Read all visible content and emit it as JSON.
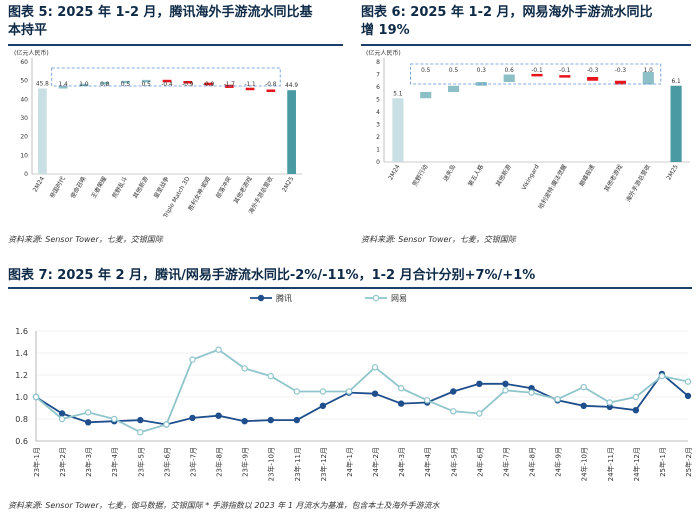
{
  "charts": {
    "fig5": {
      "title_line1": "图表 5: 2025 年 1-2 月，腾讯海外手游流水同比基",
      "title_line2": "本持平",
      "source": "资料来源: Sensor Tower，七麦，交银国际"
    },
    "fig6": {
      "title_line1": "图表 6: 2025 年 1-2 月，网易海外手游流水同比",
      "title_line2": "增 19%",
      "source": "资料来源: Sensor Tower，七麦，交银国际"
    },
    "fig7": {
      "title": "图表 7: 2025 年 2 月，腾讯/网易手游流水同比-2%/-11%，1-2 月合计分别+7%/+1%",
      "source": "资料来源: Sensor Tower，七麦，伽马数据，交银国际   * 手游指数以 2023 年 1 月流水为基准，包含本土及海外手游流水"
    }
  },
  "colors": {
    "baseline_bar": "#c9dfe3",
    "final_bar": "#4a9aa3",
    "up_bar": "#8cbfc6",
    "down_bar": "#e8141b",
    "tencent_line": "#1f4e8c",
    "netease_line": "#8fc5cb",
    "dashed_box": "#5b8fd6"
  },
  "chart_data": [
    {
      "id": "fig5",
      "type": "bar",
      "subtype": "waterfall",
      "unit_label": "(亿元人民币)",
      "ylim": [
        0,
        60
      ],
      "yticks": [
        0,
        10,
        20,
        30,
        40,
        50,
        60
      ],
      "categories": [
        "2M24",
        "帝国时代",
        "使命召唤",
        "王者荣耀",
        "荒野乱斗",
        "其他新游",
        "皇室战争",
        "Triple Match 3D",
        "胜利女神:妮姬",
        "部落冲突",
        "其他老游戏",
        "海外手游总营收",
        "2M25"
      ],
      "values": [
        45.8,
        1.4,
        1.0,
        0.8,
        0.5,
        0.5,
        -0.4,
        -0.9,
        -0.9,
        -1.7,
        -1.1,
        -0.8,
        44.9
      ],
      "labels": [
        "45.8",
        "1.4",
        "1.0",
        "0.8",
        "0.5",
        "0.5",
        "-0.4",
        "-0.9",
        "-0.9",
        "-1.7",
        "-1.1",
        "-0.8",
        "44.9"
      ]
    },
    {
      "id": "fig6",
      "type": "bar",
      "subtype": "waterfall",
      "unit_label": "(亿元人民币)",
      "ylim": [
        0,
        8
      ],
      "yticks": [
        0,
        1,
        2,
        3,
        4,
        5,
        6,
        7,
        8
      ],
      "categories": [
        "2M24",
        "荒野行动",
        "迷失岛",
        "第五人格",
        "其他新游",
        "Vikingard",
        "哈利波特:魔法觉醒",
        "巅峰极速",
        "其他老游戏",
        "海外手游总营收",
        "2M25"
      ],
      "values": [
        5.1,
        0.5,
        0.5,
        0.3,
        0.6,
        -0.1,
        -0.1,
        -0.3,
        -0.3,
        1.0,
        6.1
      ],
      "labels": [
        "5.1",
        "0.5",
        "0.5",
        "0.3",
        "0.6",
        "-0.1",
        "-0.1",
        "-0.3",
        "-0.3",
        "1.0",
        "6.1"
      ]
    },
    {
      "id": "fig7",
      "type": "line",
      "ylim": [
        0.6,
        1.6
      ],
      "yticks": [
        "0.6",
        "0.8",
        "1.0",
        "1.2",
        "1.4",
        "1.6"
      ],
      "x": [
        "23年-1月",
        "23年-2月",
        "23年-3月",
        "23年-4月",
        "23年-5月",
        "23年-6月",
        "23年-7月",
        "23年-8月",
        "23年-9月",
        "23年-10月",
        "23年-11月",
        "23年-12月",
        "24年-1月",
        "24年-2月",
        "24年-3月",
        "24年-4月",
        "24年-5月",
        "24年-6月",
        "24年-7月",
        "24年-8月",
        "24年-9月",
        "24年-10月",
        "24年-11月",
        "24年-12月",
        "25年-1月",
        "25年-2月"
      ],
      "series": [
        {
          "name": "腾讯",
          "values": [
            1.0,
            0.85,
            0.77,
            0.78,
            0.79,
            0.75,
            0.81,
            0.83,
            0.78,
            0.79,
            0.79,
            0.92,
            1.04,
            1.03,
            0.94,
            0.95,
            1.05,
            1.12,
            1.12,
            1.08,
            0.97,
            0.92,
            0.91,
            0.88,
            1.21,
            1.01
          ]
        },
        {
          "name": "网易",
          "values": [
            1.0,
            0.8,
            0.86,
            0.8,
            0.68,
            0.75,
            1.34,
            1.43,
            1.26,
            1.19,
            1.05,
            1.05,
            1.05,
            1.27,
            1.08,
            0.97,
            0.87,
            0.85,
            1.06,
            1.04,
            0.98,
            1.09,
            0.95,
            1.0,
            1.19,
            1.14
          ]
        }
      ],
      "legend_position": "top-center"
    }
  ]
}
